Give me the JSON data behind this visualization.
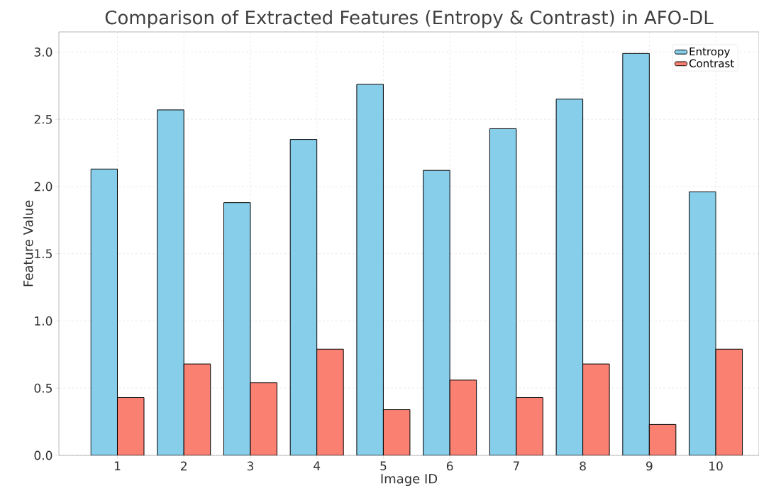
{
  "chart_data": {
    "type": "bar",
    "title": "Comparison of Extracted Features (Entropy & Contrast) in AFO-DL",
    "xlabel": "Image ID",
    "ylabel": "Feature Value",
    "categories": [
      "1",
      "2",
      "3",
      "4",
      "5",
      "6",
      "7",
      "8",
      "9",
      "10"
    ],
    "series": [
      {
        "name": "Entropy",
        "color": "#87ceeb",
        "values": [
          2.13,
          2.57,
          1.88,
          2.35,
          2.76,
          2.12,
          2.43,
          2.65,
          2.99,
          1.96
        ]
      },
      {
        "name": "Contrast",
        "color": "#fa8072",
        "values": [
          0.43,
          0.68,
          0.54,
          0.79,
          0.34,
          0.56,
          0.43,
          0.68,
          0.23,
          0.79
        ]
      }
    ],
    "ylim": [
      0,
      3.15
    ],
    "yticks": [
      {
        "value": 0,
        "label": "0.0"
      },
      {
        "value": 0.5,
        "label": "0.5"
      },
      {
        "value": 1,
        "label": "1.0"
      },
      {
        "value": 1.5,
        "label": "1.5"
      },
      {
        "value": 2,
        "label": "2.0"
      },
      {
        "value": 2.5,
        "label": "2.5"
      },
      {
        "value": 3,
        "label": "3.0"
      }
    ],
    "grid": true,
    "legend": "top right"
  }
}
